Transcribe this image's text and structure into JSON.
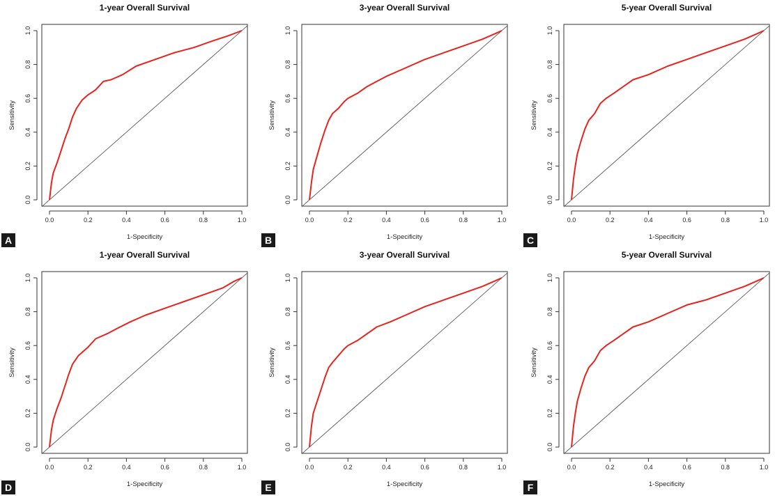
{
  "chart_data": [
    {
      "panel": "A",
      "type": "line",
      "title": "1-year Overall Survival",
      "xlabel": "1-Specificity",
      "ylabel": "Sensitivity",
      "xlim": [
        0,
        1
      ],
      "ylim": [
        0,
        1
      ],
      "xticks": [
        "0.0",
        "0.2",
        "0.4",
        "0.6",
        "0.8",
        "1.0"
      ],
      "yticks": [
        "0.0",
        "0.2",
        "0.4",
        "0.6",
        "0.8",
        "1.0"
      ],
      "grid": false,
      "diagonal_reference": true,
      "curve_color": "#e8231d",
      "series": [
        {
          "x": [
            0,
            0.01,
            0.02,
            0.04,
            0.06,
            0.08,
            0.1,
            0.12,
            0.14,
            0.17,
            0.2,
            0.24,
            0.28,
            0.32,
            0.38,
            0.45,
            0.55,
            0.65,
            0.75,
            0.85,
            0.93,
            1.0
          ],
          "y": [
            0,
            0.1,
            0.16,
            0.22,
            0.29,
            0.36,
            0.42,
            0.49,
            0.54,
            0.59,
            0.62,
            0.65,
            0.7,
            0.71,
            0.74,
            0.79,
            0.83,
            0.87,
            0.9,
            0.94,
            0.97,
            1.0
          ]
        }
      ]
    },
    {
      "panel": "B",
      "type": "line",
      "title": "3-year Overall Survival",
      "xlabel": "1-Specificity",
      "ylabel": "Sensitivity",
      "xlim": [
        0,
        1
      ],
      "ylim": [
        0,
        1
      ],
      "xticks": [
        "0.0",
        "0.2",
        "0.4",
        "0.6",
        "0.8",
        "1.0"
      ],
      "yticks": [
        "0.0",
        "0.2",
        "0.4",
        "0.6",
        "0.8",
        "1.0"
      ],
      "grid": false,
      "diagonal_reference": true,
      "curve_color": "#e8231d",
      "series": [
        {
          "x": [
            0,
            0.01,
            0.02,
            0.04,
            0.06,
            0.08,
            0.1,
            0.12,
            0.15,
            0.18,
            0.2,
            0.25,
            0.3,
            0.35,
            0.4,
            0.5,
            0.6,
            0.7,
            0.8,
            0.9,
            0.96,
            1.0
          ],
          "y": [
            0,
            0.1,
            0.18,
            0.26,
            0.34,
            0.41,
            0.47,
            0.51,
            0.54,
            0.58,
            0.6,
            0.63,
            0.67,
            0.7,
            0.73,
            0.78,
            0.83,
            0.87,
            0.91,
            0.95,
            0.98,
            1.0
          ]
        }
      ]
    },
    {
      "panel": "C",
      "type": "line",
      "title": "5-year Overall Survival",
      "xlabel": "1-Specificity",
      "ylabel": "Sensitivity",
      "xlim": [
        0,
        1
      ],
      "ylim": [
        0,
        1
      ],
      "xticks": [
        "0.0",
        "0.2",
        "0.4",
        "0.6",
        "0.8",
        "1.0"
      ],
      "yticks": [
        "0.0",
        "0.2",
        "0.4",
        "0.6",
        "0.8",
        "1.0"
      ],
      "grid": false,
      "diagonal_reference": true,
      "curve_color": "#e8231d",
      "series": [
        {
          "x": [
            0,
            0.005,
            0.01,
            0.02,
            0.03,
            0.05,
            0.07,
            0.09,
            0.12,
            0.15,
            0.18,
            0.22,
            0.27,
            0.32,
            0.4,
            0.5,
            0.6,
            0.7,
            0.8,
            0.9,
            0.96,
            1.0
          ],
          "y": [
            0,
            0.06,
            0.12,
            0.2,
            0.27,
            0.35,
            0.42,
            0.47,
            0.51,
            0.57,
            0.6,
            0.63,
            0.67,
            0.71,
            0.74,
            0.79,
            0.83,
            0.87,
            0.91,
            0.95,
            0.98,
            1.0
          ]
        }
      ]
    },
    {
      "panel": "D",
      "type": "line",
      "title": "1-year Overall Survival",
      "xlabel": "1-Specificity",
      "ylabel": "Sensitivity",
      "xlim": [
        0,
        1
      ],
      "ylim": [
        0,
        1
      ],
      "xticks": [
        "0.0",
        "0.2",
        "0.4",
        "0.6",
        "0.8",
        "1.0"
      ],
      "yticks": [
        "0.0",
        "0.2",
        "0.4",
        "0.6",
        "0.8",
        "1.0"
      ],
      "grid": false,
      "diagonal_reference": true,
      "curve_color": "#e8231d",
      "series": [
        {
          "x": [
            0,
            0.01,
            0.02,
            0.04,
            0.06,
            0.08,
            0.1,
            0.12,
            0.15,
            0.18,
            0.2,
            0.24,
            0.3,
            0.35,
            0.42,
            0.5,
            0.6,
            0.7,
            0.8,
            0.9,
            0.96,
            1.0
          ],
          "y": [
            0,
            0.1,
            0.16,
            0.23,
            0.29,
            0.36,
            0.43,
            0.49,
            0.54,
            0.57,
            0.59,
            0.64,
            0.67,
            0.7,
            0.74,
            0.78,
            0.82,
            0.86,
            0.9,
            0.94,
            0.98,
            1.0
          ]
        }
      ]
    },
    {
      "panel": "E",
      "type": "line",
      "title": "3-year Overall Survival",
      "xlabel": "1-Specificity",
      "ylabel": "Sensitivity",
      "xlim": [
        0,
        1
      ],
      "ylim": [
        0,
        1
      ],
      "xticks": [
        "0.0",
        "0.2",
        "0.4",
        "0.6",
        "0.8",
        "1.0"
      ],
      "yticks": [
        "0.0",
        "0.2",
        "0.4",
        "0.6",
        "0.8",
        "1.0"
      ],
      "grid": false,
      "diagonal_reference": true,
      "curve_color": "#e8231d",
      "series": [
        {
          "x": [
            0,
            0.01,
            0.02,
            0.04,
            0.06,
            0.08,
            0.1,
            0.12,
            0.15,
            0.18,
            0.2,
            0.25,
            0.3,
            0.35,
            0.42,
            0.5,
            0.6,
            0.7,
            0.8,
            0.9,
            0.96,
            1.0
          ],
          "y": [
            0,
            0.12,
            0.2,
            0.27,
            0.34,
            0.41,
            0.47,
            0.5,
            0.54,
            0.58,
            0.6,
            0.63,
            0.67,
            0.71,
            0.74,
            0.78,
            0.83,
            0.87,
            0.91,
            0.95,
            0.98,
            1.0
          ]
        }
      ]
    },
    {
      "panel": "F",
      "type": "line",
      "title": "5-year Overall Survival",
      "xlabel": "1-Specificity",
      "ylabel": "Sensitivity",
      "xlim": [
        0,
        1
      ],
      "ylim": [
        0,
        1
      ],
      "xticks": [
        "0.0",
        "0.2",
        "0.4",
        "0.6",
        "0.8",
        "1.0"
      ],
      "yticks": [
        "0.0",
        "0.2",
        "0.4",
        "0.6",
        "0.8",
        "1.0"
      ],
      "grid": false,
      "diagonal_reference": true,
      "curve_color": "#e8231d",
      "series": [
        {
          "x": [
            0,
            0.005,
            0.01,
            0.02,
            0.03,
            0.05,
            0.07,
            0.09,
            0.12,
            0.15,
            0.18,
            0.22,
            0.27,
            0.32,
            0.4,
            0.5,
            0.6,
            0.7,
            0.8,
            0.9,
            0.96,
            1.0
          ],
          "y": [
            0,
            0.06,
            0.12,
            0.2,
            0.27,
            0.35,
            0.42,
            0.47,
            0.51,
            0.57,
            0.6,
            0.63,
            0.67,
            0.71,
            0.74,
            0.79,
            0.84,
            0.87,
            0.91,
            0.95,
            0.98,
            1.0
          ]
        }
      ]
    }
  ]
}
